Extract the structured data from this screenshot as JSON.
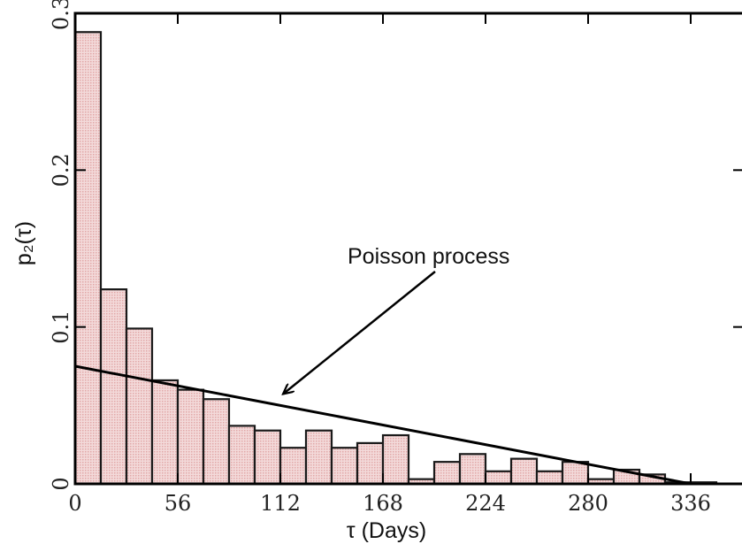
{
  "chart_data": {
    "type": "bar",
    "title": "",
    "xlabel": "τ (Days)",
    "ylabel": "p₂(τ)",
    "bin_width": 14,
    "bins": [
      {
        "x0": 0,
        "x1": 14,
        "y": 0.288
      },
      {
        "x0": 14,
        "x1": 28,
        "y": 0.124
      },
      {
        "x0": 28,
        "x1": 42,
        "y": 0.099
      },
      {
        "x0": 42,
        "x1": 56,
        "y": 0.066
      },
      {
        "x0": 56,
        "x1": 70,
        "y": 0.06
      },
      {
        "x0": 70,
        "x1": 84,
        "y": 0.054
      },
      {
        "x0": 84,
        "x1": 98,
        "y": 0.037
      },
      {
        "x0": 98,
        "x1": 112,
        "y": 0.034
      },
      {
        "x0": 112,
        "x1": 126,
        "y": 0.023
      },
      {
        "x0": 126,
        "x1": 140,
        "y": 0.034
      },
      {
        "x0": 140,
        "x1": 154,
        "y": 0.023
      },
      {
        "x0": 154,
        "x1": 168,
        "y": 0.026
      },
      {
        "x0": 168,
        "x1": 182,
        "y": 0.031
      },
      {
        "x0": 182,
        "x1": 196,
        "y": 0.003
      },
      {
        "x0": 196,
        "x1": 210,
        "y": 0.014
      },
      {
        "x0": 210,
        "x1": 224,
        "y": 0.019
      },
      {
        "x0": 224,
        "x1": 238,
        "y": 0.008
      },
      {
        "x0": 238,
        "x1": 252,
        "y": 0.016
      },
      {
        "x0": 252,
        "x1": 266,
        "y": 0.008
      },
      {
        "x0": 266,
        "x1": 280,
        "y": 0.014
      },
      {
        "x0": 280,
        "x1": 294,
        "y": 0.003
      },
      {
        "x0": 294,
        "x1": 308,
        "y": 0.009
      },
      {
        "x0": 308,
        "x1": 322,
        "y": 0.006
      },
      {
        "x0": 322,
        "x1": 336,
        "y": 0.001
      },
      {
        "x0": 336,
        "x1": 350,
        "y": 0.001
      }
    ],
    "poisson_line": {
      "x": [
        0,
        336
      ],
      "y": [
        0.075,
        0.0
      ]
    },
    "xlim": [
      0,
      364
    ],
    "ylim": [
      0,
      0.3
    ],
    "xticks": [
      0,
      56,
      112,
      168,
      224,
      280,
      336
    ],
    "yticks": [
      0,
      0.1,
      0.2,
      0.3
    ],
    "xtick_labels": [
      "0",
      "56",
      "112",
      "168",
      "224",
      "280",
      "336"
    ],
    "ytick_labels": [
      "0",
      "0.1",
      "0.2",
      "0.3"
    ],
    "annotation": {
      "text": "Poisson process",
      "arrow_tip": {
        "x": 112,
        "y": 0.055
      }
    },
    "bar_color": "#f2d7d7",
    "bar_stroke": "#1a1a1a",
    "line_color": "#000000",
    "grid": false
  }
}
